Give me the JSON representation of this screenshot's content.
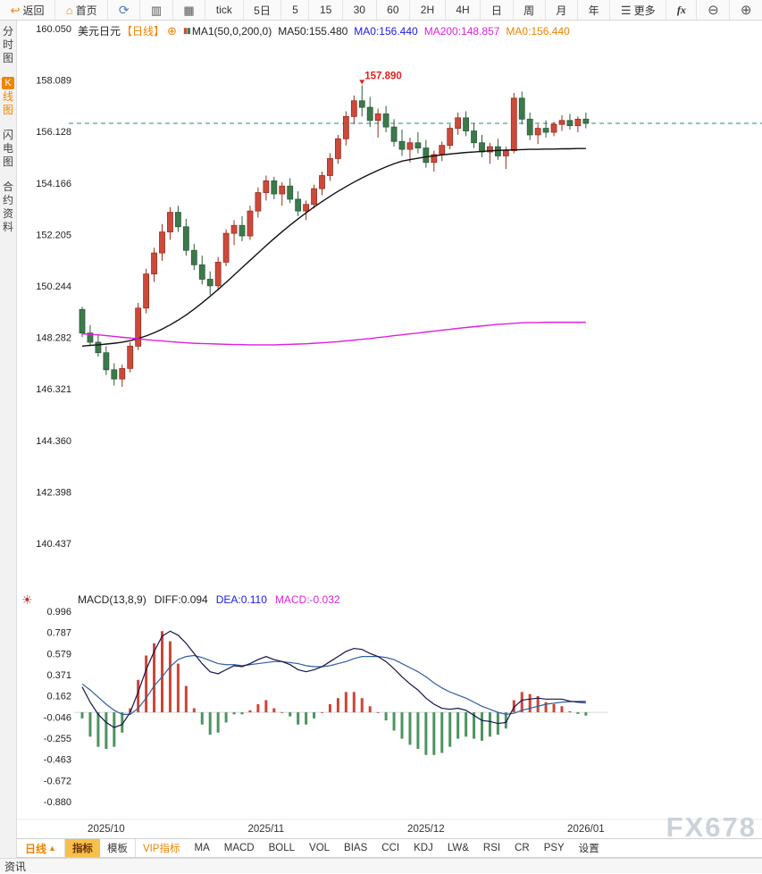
{
  "toolbar": {
    "items": [
      {
        "name": "back-button",
        "icon": "back-icon",
        "glyph": "↩",
        "label": "返回"
      },
      {
        "name": "home-button",
        "icon": "home-icon",
        "glyph": "⌂",
        "label": "首页"
      },
      {
        "name": "refresh-button",
        "icon": "refresh-icon",
        "glyph": "⟳",
        "label": ""
      },
      {
        "name": "bar-chart-button",
        "icon": "bar-chart-icon",
        "glyph": "▥",
        "label": ""
      },
      {
        "name": "candlestick-button",
        "icon": "candlestick-icon",
        "glyph": "▦",
        "label": ""
      },
      {
        "name": "timeframe-tick",
        "label": "tick"
      },
      {
        "name": "timeframe-5day",
        "label": "5日"
      },
      {
        "name": "timeframe-5min",
        "label": "5"
      },
      {
        "name": "timeframe-15min",
        "label": "15"
      },
      {
        "name": "timeframe-30min",
        "label": "30"
      },
      {
        "name": "timeframe-60min",
        "label": "60"
      },
      {
        "name": "timeframe-2h",
        "label": "2H"
      },
      {
        "name": "timeframe-4h",
        "label": "4H"
      },
      {
        "name": "timeframe-daily",
        "label": "日"
      },
      {
        "name": "timeframe-weekly",
        "label": "周"
      },
      {
        "name": "timeframe-monthly",
        "label": "月"
      },
      {
        "name": "timeframe-yearly",
        "label": "年"
      },
      {
        "name": "more-button",
        "icon": "menu-icon",
        "glyph": "☰",
        "label": "更多"
      },
      {
        "name": "fx-button",
        "label": "fx"
      },
      {
        "name": "zoom-out-button",
        "icon": "zoom-out-icon",
        "glyph": "⊖",
        "label": ""
      },
      {
        "name": "zoom-in-button",
        "icon": "zoom-in-icon",
        "glyph": "⊕",
        "label": ""
      }
    ]
  },
  "sidebar": {
    "items": [
      {
        "name": "sidebar-item-time-chart",
        "label": "分时图",
        "active": false
      },
      {
        "name": "sidebar-item-kline",
        "badge": "K",
        "label": "线图",
        "active": true
      },
      {
        "name": "sidebar-item-lightning",
        "label": "闪电图",
        "active": false
      },
      {
        "name": "sidebar-item-contract-info",
        "label": "合约资料",
        "active": false
      }
    ]
  },
  "main_header": {
    "symbol": "美元日元",
    "period": "【日线】",
    "add_icon_glyph": "⊕",
    "ma_group": "MA1(50,0,200,0)",
    "ma50": "MA50:155.480",
    "ma0_primary": "MA0:156.440",
    "ma200": "MA200:148.857",
    "ma0_secondary": "MA0:156.440"
  },
  "macd_header": {
    "settings_icon_glyph": "☀",
    "title": "MACD(13,8,9)",
    "diff": "DIFF:0.094",
    "dea": "DEA:0.110",
    "macd": "MACD:-0.032"
  },
  "bottom_tabs": {
    "period_label": "日线",
    "period_arrow": "▲",
    "tabs": [
      {
        "name": "tab-indicator",
        "label": "指标",
        "state": "selected"
      },
      {
        "name": "tab-template",
        "label": "模板",
        "state": ""
      },
      {
        "name": "tab-vip-indicator",
        "label": "VIP指标",
        "state": "vip"
      },
      {
        "name": "tab-ma",
        "label": "MA",
        "state": ""
      },
      {
        "name": "tab-macd",
        "label": "MACD",
        "state": ""
      },
      {
        "name": "tab-boll",
        "label": "BOLL",
        "state": ""
      },
      {
        "name": "tab-vol",
        "label": "VOL",
        "state": ""
      },
      {
        "name": "tab-bias",
        "label": "BIAS",
        "state": ""
      },
      {
        "name": "tab-cci",
        "label": "CCI",
        "state": ""
      },
      {
        "name": "tab-kdj",
        "label": "KDJ",
        "state": ""
      },
      {
        "name": "tab-lw",
        "label": "LW&",
        "state": ""
      },
      {
        "name": "tab-rsi",
        "label": "RSI",
        "state": ""
      },
      {
        "name": "tab-cr",
        "label": "CR",
        "state": ""
      },
      {
        "name": "tab-psy",
        "label": "PSY",
        "state": ""
      },
      {
        "name": "tab-settings",
        "label": "设置",
        "state": ""
      }
    ]
  },
  "bottom_strip": {
    "label": "资讯"
  },
  "watermark": "FX678",
  "colors": {
    "accent": "#f08300",
    "up_fill": "#cc4a3c",
    "up_stroke": "#9b2d1f",
    "down_fill": "#3c7a4c",
    "down_stroke": "#2a5c38",
    "ma50": "#111111",
    "ma200": "#e01ee0",
    "current_price_line": "#1e8a8a",
    "hist_up": "#cf4435",
    "hist_down": "#4d9360",
    "diff_line": "#14144a",
    "dea_line": "#2f5fa3",
    "annotation": "#e02020"
  },
  "chart_data": {
    "type": "candlestick",
    "symbol": "美元日元 (USD/JPY)",
    "timeframe": "日线 (daily)",
    "y_axis_labels": [
      "160.050",
      "158.089",
      "156.128",
      "154.166",
      "152.205",
      "150.244",
      "148.282",
      "146.321",
      "144.360",
      "142.398",
      "140.437"
    ],
    "x_axis_labels": [
      "2025/10",
      "2025/11",
      "2025/12",
      "2026/01"
    ],
    "x_label_indices": [
      3,
      23,
      43,
      63
    ],
    "current_price": 156.44,
    "peak_annotation": {
      "label": "157.890",
      "price": 157.89,
      "index": 35
    },
    "candles": [
      [
        149.35,
        149.45,
        148.3,
        148.45
      ],
      [
        148.45,
        148.75,
        147.95,
        148.1
      ],
      [
        148.1,
        148.4,
        147.55,
        147.7
      ],
      [
        147.7,
        147.95,
        146.85,
        147.05
      ],
      [
        147.05,
        147.3,
        146.45,
        146.7
      ],
      [
        146.7,
        147.25,
        146.4,
        147.1
      ],
      [
        147.1,
        148.1,
        146.95,
        147.95
      ],
      [
        147.95,
        149.6,
        147.8,
        149.4
      ],
      [
        149.4,
        150.9,
        149.2,
        150.7
      ],
      [
        150.7,
        151.7,
        150.4,
        151.5
      ],
      [
        151.5,
        152.6,
        151.2,
        152.3
      ],
      [
        152.3,
        153.25,
        152.0,
        153.05
      ],
      [
        153.05,
        153.3,
        152.3,
        152.5
      ],
      [
        152.5,
        152.8,
        151.4,
        151.6
      ],
      [
        151.6,
        151.85,
        150.85,
        151.05
      ],
      [
        151.05,
        151.4,
        150.3,
        150.5
      ],
      [
        150.5,
        150.8,
        149.9,
        150.25
      ],
      [
        150.25,
        151.35,
        150.1,
        151.15
      ],
      [
        151.15,
        152.4,
        151.0,
        152.25
      ],
      [
        152.25,
        152.75,
        151.8,
        152.55
      ],
      [
        152.55,
        152.9,
        151.95,
        152.15
      ],
      [
        152.15,
        153.3,
        152.0,
        153.1
      ],
      [
        153.1,
        154.0,
        152.85,
        153.8
      ],
      [
        153.8,
        154.45,
        153.5,
        154.25
      ],
      [
        154.25,
        154.4,
        153.55,
        153.75
      ],
      [
        153.75,
        154.2,
        153.3,
        154.05
      ],
      [
        154.05,
        154.35,
        153.4,
        153.55
      ],
      [
        153.55,
        153.85,
        152.9,
        153.1
      ],
      [
        153.1,
        153.5,
        152.75,
        153.35
      ],
      [
        153.35,
        154.1,
        153.2,
        153.95
      ],
      [
        153.95,
        154.6,
        153.7,
        154.45
      ],
      [
        154.45,
        155.3,
        154.25,
        155.1
      ],
      [
        155.1,
        156.0,
        154.9,
        155.85
      ],
      [
        155.85,
        156.9,
        155.6,
        156.7
      ],
      [
        156.7,
        157.5,
        156.4,
        157.3
      ],
      [
        157.3,
        157.89,
        156.7,
        157.05
      ],
      [
        157.05,
        157.45,
        156.3,
        156.55
      ],
      [
        156.55,
        157.0,
        155.9,
        156.8
      ],
      [
        156.8,
        157.1,
        156.1,
        156.3
      ],
      [
        156.3,
        156.6,
        155.55,
        155.75
      ],
      [
        155.75,
        156.2,
        155.2,
        155.45
      ],
      [
        155.45,
        155.9,
        154.95,
        155.7
      ],
      [
        155.7,
        156.1,
        155.3,
        155.5
      ],
      [
        155.5,
        155.8,
        154.75,
        154.95
      ],
      [
        154.95,
        155.4,
        154.6,
        155.25
      ],
      [
        155.25,
        155.75,
        155.0,
        155.6
      ],
      [
        155.6,
        156.4,
        155.45,
        156.25
      ],
      [
        156.25,
        156.85,
        156.0,
        156.65
      ],
      [
        156.65,
        156.9,
        155.95,
        156.15
      ],
      [
        156.15,
        156.45,
        155.5,
        155.7
      ],
      [
        155.7,
        156.0,
        155.15,
        155.35
      ],
      [
        155.35,
        155.7,
        154.9,
        155.55
      ],
      [
        155.55,
        155.85,
        155.05,
        155.2
      ],
      [
        155.2,
        155.55,
        154.7,
        155.4
      ],
      [
        155.4,
        157.6,
        155.3,
        157.4
      ],
      [
        157.4,
        157.65,
        156.4,
        156.6
      ],
      [
        156.6,
        156.85,
        155.8,
        156.0
      ],
      [
        156.0,
        156.4,
        155.65,
        156.25
      ],
      [
        156.25,
        156.55,
        155.9,
        156.1
      ],
      [
        156.1,
        156.5,
        155.95,
        156.4
      ],
      [
        156.4,
        156.75,
        156.15,
        156.55
      ],
      [
        156.55,
        156.8,
        156.2,
        156.35
      ],
      [
        156.35,
        156.7,
        156.1,
        156.6
      ],
      [
        156.6,
        156.85,
        156.25,
        156.44
      ]
    ],
    "ma50": [
      147.95,
      147.98,
      148.0,
      148.03,
      148.06,
      148.1,
      148.16,
      148.24,
      148.34,
      148.46,
      148.6,
      148.76,
      148.94,
      149.14,
      149.36,
      149.6,
      149.85,
      150.11,
      150.38,
      150.66,
      150.94,
      151.22,
      151.5,
      151.78,
      152.05,
      152.31,
      152.56,
      152.8,
      153.03,
      153.25,
      153.46,
      153.66,
      153.85,
      154.03,
      154.2,
      154.36,
      154.51,
      154.65,
      154.78,
      154.9,
      155.0,
      155.06,
      155.11,
      155.16,
      155.2,
      155.24,
      155.27,
      155.3,
      155.33,
      155.35,
      155.37,
      155.39,
      155.41,
      155.42,
      155.43,
      155.44,
      155.45,
      155.45,
      155.46,
      155.46,
      155.47,
      155.47,
      155.48,
      155.48
    ],
    "ma200": [
      148.42,
      148.4,
      148.38,
      148.35,
      148.32,
      148.29,
      148.26,
      148.23,
      148.2,
      148.17,
      148.15,
      148.12,
      148.1,
      148.08,
      148.06,
      148.05,
      148.04,
      148.03,
      148.02,
      148.01,
      148.01,
      148.0,
      148.0,
      148.0,
      148.0,
      148.01,
      148.02,
      148.03,
      148.04,
      148.06,
      148.08,
      148.1,
      148.12,
      148.15,
      148.18,
      148.21,
      148.24,
      148.28,
      148.31,
      148.35,
      148.38,
      148.42,
      148.45,
      148.49,
      148.52,
      148.56,
      148.59,
      148.63,
      148.66,
      148.69,
      148.72,
      148.75,
      148.78,
      148.8,
      148.82,
      148.84,
      148.85,
      148.85,
      148.86,
      148.86,
      148.86,
      148.86,
      148.86,
      148.86
    ],
    "macd": {
      "parameters": "13,8,9",
      "y_axis_labels": [
        "0.996",
        "0.787",
        "0.579",
        "0.371",
        "0.162",
        "-0.046",
        "-0.255",
        "-0.463",
        "-0.672",
        "-0.880"
      ],
      "diff": [
        0.25,
        0.1,
        -0.02,
        -0.1,
        -0.15,
        -0.12,
        0.0,
        0.2,
        0.42,
        0.6,
        0.75,
        0.8,
        0.76,
        0.68,
        0.58,
        0.48,
        0.4,
        0.38,
        0.42,
        0.46,
        0.45,
        0.48,
        0.52,
        0.55,
        0.52,
        0.5,
        0.47,
        0.42,
        0.4,
        0.42,
        0.45,
        0.5,
        0.55,
        0.6,
        0.63,
        0.62,
        0.58,
        0.55,
        0.5,
        0.43,
        0.35,
        0.28,
        0.22,
        0.14,
        0.08,
        0.04,
        0.03,
        0.04,
        0.02,
        -0.03,
        -0.08,
        -0.09,
        -0.11,
        -0.1,
        0.05,
        0.12,
        0.13,
        0.14,
        0.13,
        0.13,
        0.13,
        0.11,
        0.1,
        0.094
      ],
      "dea": [
        0.28,
        0.22,
        0.15,
        0.08,
        0.02,
        -0.02,
        -0.02,
        0.04,
        0.14,
        0.26,
        0.35,
        0.45,
        0.52,
        0.55,
        0.56,
        0.54,
        0.51,
        0.48,
        0.47,
        0.47,
        0.46,
        0.47,
        0.48,
        0.49,
        0.5,
        0.5,
        0.49,
        0.48,
        0.46,
        0.45,
        0.45,
        0.46,
        0.48,
        0.5,
        0.53,
        0.55,
        0.55,
        0.55,
        0.54,
        0.52,
        0.48,
        0.44,
        0.4,
        0.35,
        0.29,
        0.24,
        0.2,
        0.17,
        0.14,
        0.1,
        0.06,
        0.03,
        0.0,
        -0.02,
        -0.01,
        0.02,
        0.04,
        0.06,
        0.08,
        0.09,
        0.1,
        0.105,
        0.108,
        0.11
      ]
    }
  }
}
